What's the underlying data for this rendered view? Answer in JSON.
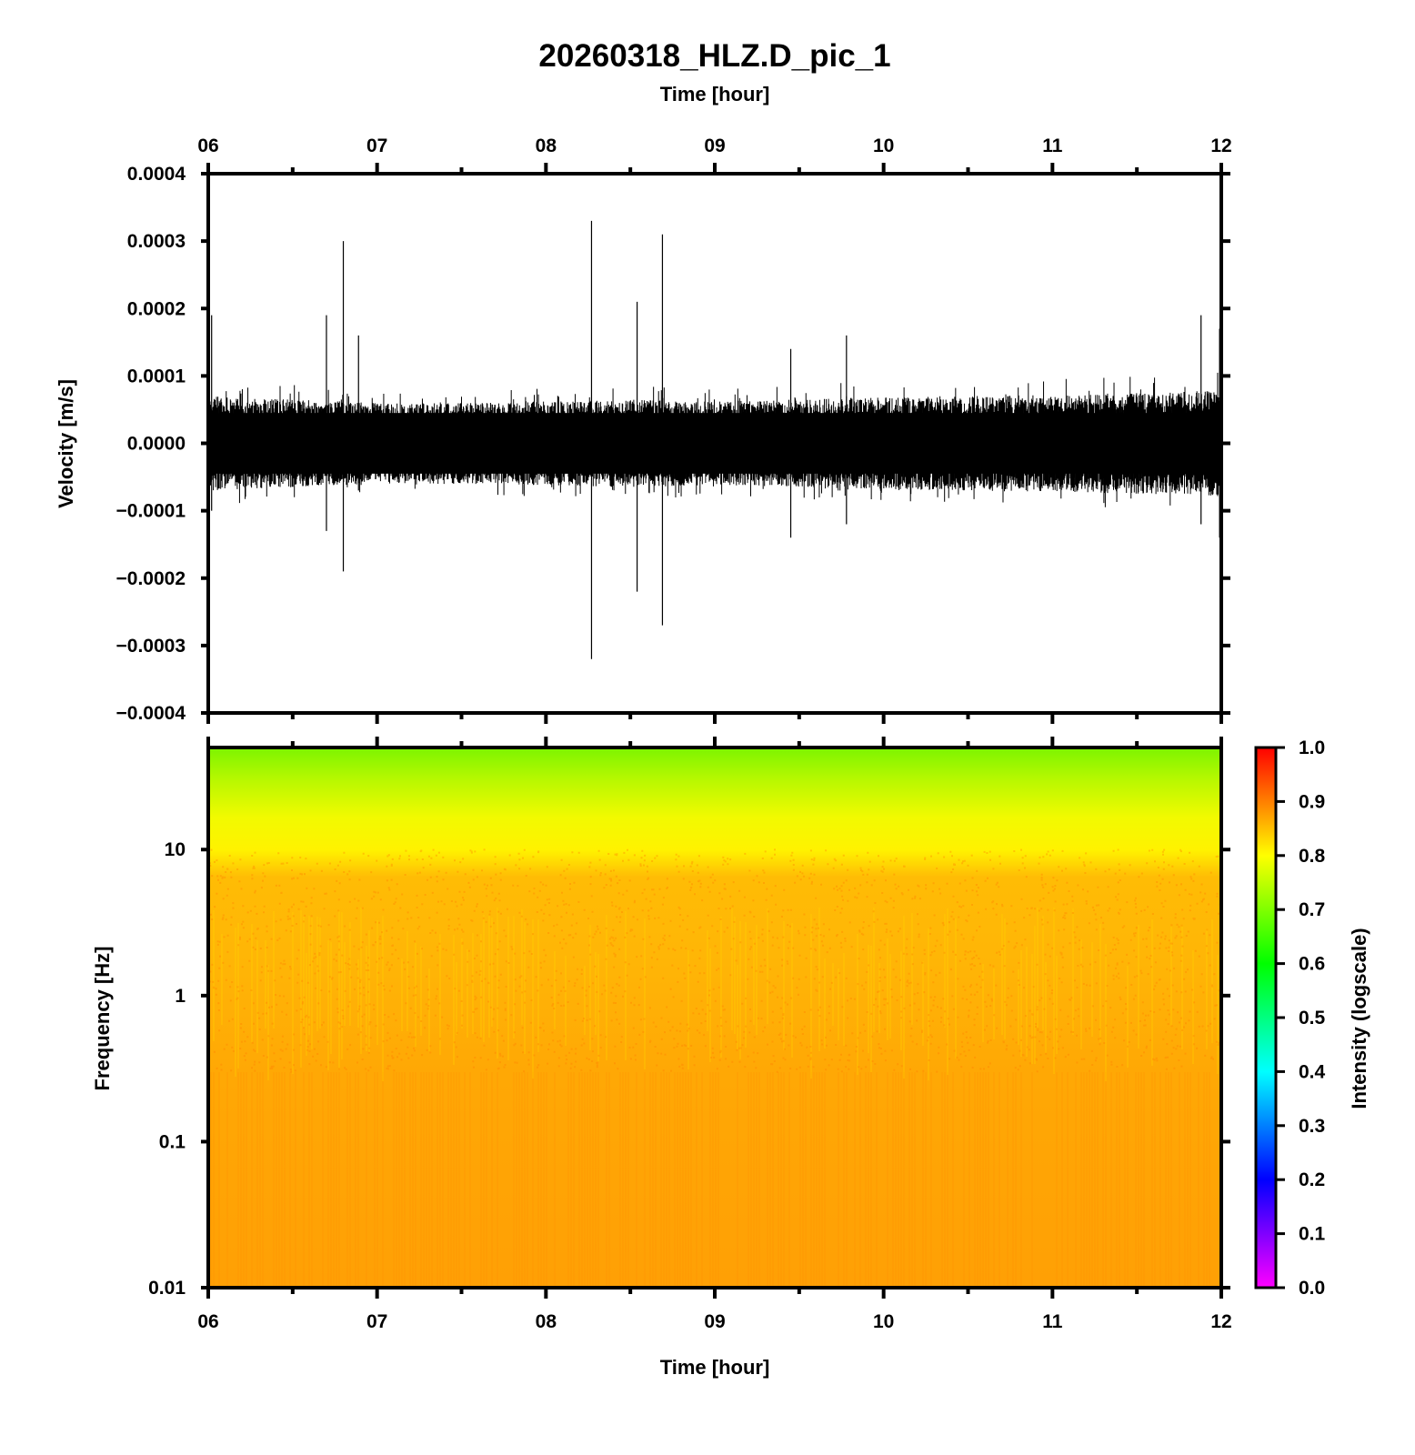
{
  "chart_data": [
    {
      "type": "line",
      "title": "20260318_HLZ.D_pic_1",
      "x_top_label": "Time [hour]",
      "ylabel": "Velocity [m/s]",
      "x_ticks": [
        "06",
        "07",
        "08",
        "09",
        "10",
        "11",
        "12"
      ],
      "xlim": [
        6,
        12
      ],
      "ylim": [
        -0.0004,
        0.0004
      ],
      "y_ticks": [
        "0.0004",
        "0.0003",
        "0.0002",
        "0.0001",
        "0.0000",
        "−0.0001",
        "−0.0002",
        "−0.0003",
        "−0.0004"
      ],
      "y_tick_values": [
        0.0004,
        0.0003,
        0.0002,
        0.0001,
        0,
        -0.0001,
        -0.0002,
        -0.0003,
        -0.0004
      ],
      "noise_envelope": {
        "x": [
          6.0,
          6.5,
          7.0,
          7.5,
          8.0,
          8.5,
          9.0,
          9.5,
          10.0,
          10.5,
          11.0,
          11.5,
          12.0
        ],
        "amplitude": [
          7e-05,
          6.5e-05,
          6e-05,
          6e-05,
          6.2e-05,
          6.5e-05,
          6.2e-05,
          6.5e-05,
          6.8e-05,
          7e-05,
          7.2e-05,
          7.5e-05,
          7.8e-05
        ]
      },
      "spikes": [
        {
          "x": 6.02,
          "max": 0.00019,
          "min": -0.0001
        },
        {
          "x": 6.7,
          "max": 0.00019,
          "min": -0.00013
        },
        {
          "x": 6.8,
          "max": 0.0003,
          "min": -0.00019
        },
        {
          "x": 6.89,
          "max": 0.00016,
          "min": -7e-05
        },
        {
          "x": 8.27,
          "max": 0.00033,
          "min": -0.00032
        },
        {
          "x": 8.54,
          "max": 0.00021,
          "min": -0.00022
        },
        {
          "x": 8.69,
          "max": 0.00031,
          "min": -0.00027
        },
        {
          "x": 9.45,
          "max": 0.00014,
          "min": -0.00014
        },
        {
          "x": 9.78,
          "max": 0.00016,
          "min": -0.00012
        },
        {
          "x": 11.88,
          "max": 0.00019,
          "min": -0.00012
        },
        {
          "x": 11.99,
          "max": 0.00017,
          "min": -0.00014
        }
      ]
    },
    {
      "type": "heatmap",
      "xlabel": "Time [hour]",
      "ylabel": "Frequency [Hz]",
      "x_ticks": [
        "06",
        "07",
        "08",
        "09",
        "10",
        "11",
        "12"
      ],
      "xlim": [
        6,
        12
      ],
      "y_scale": "log",
      "ylim": [
        0.01,
        50
      ],
      "y_ticks": [
        "10",
        "1",
        "0.1",
        "0.01"
      ],
      "y_tick_values": [
        10,
        1,
        0.1,
        0.01
      ],
      "intensity_profile": {
        "frequency_hz": [
          0.01,
          0.1,
          0.3,
          1,
          3,
          6,
          10,
          20,
          50
        ],
        "intensity": [
          0.84,
          0.84,
          0.83,
          0.83,
          0.84,
          0.84,
          0.8,
          0.75,
          0.68
        ]
      },
      "colorbar": {
        "label": "Intensity (logscale)",
        "ticks": [
          "1.0",
          "0.9",
          "0.8",
          "0.7",
          "0.6",
          "0.5",
          "0.4",
          "0.3",
          "0.2",
          "0.1",
          "0.0"
        ],
        "tick_values": [
          1.0,
          0.9,
          0.8,
          0.7,
          0.6,
          0.5,
          0.4,
          0.3,
          0.2,
          0.1,
          0.0
        ],
        "range": [
          0.0,
          1.0
        ],
        "colors": [
          "#ff00ff",
          "#0000ff",
          "#00ffff",
          "#00ff00",
          "#ffff00",
          "#ff0000"
        ]
      }
    }
  ]
}
